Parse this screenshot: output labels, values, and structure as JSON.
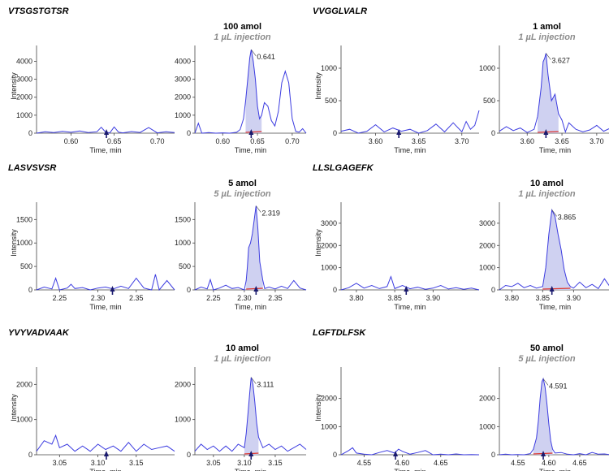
{
  "chart_data": [
    {
      "peptide": "VTSGSTGTSR",
      "amount": "100 amol",
      "injection": "1 µL injection",
      "xlabel": "Time, min",
      "ylabel": "Intensity",
      "xticks": [
        "0.60",
        "0.65",
        "0.70"
      ],
      "yticks": [
        "0",
        "1000",
        "2000",
        "3000",
        "4000"
      ],
      "peak_label": "0.641",
      "blank": {
        "type": "line",
        "xlim": [
          0.56,
          0.72
        ],
        "ylim": [
          0,
          4700
        ],
        "x": [
          0.56,
          0.57,
          0.58,
          0.59,
          0.6,
          0.61,
          0.62,
          0.63,
          0.635,
          0.64,
          0.645,
          0.65,
          0.655,
          0.66,
          0.67,
          0.68,
          0.69,
          0.7,
          0.71,
          0.72
        ],
        "y": [
          0,
          80,
          30,
          100,
          50,
          120,
          30,
          80,
          330,
          60,
          20,
          350,
          60,
          20,
          90,
          40,
          310,
          20,
          80,
          30
        ]
      },
      "sample": {
        "type": "line",
        "xlim": [
          0.56,
          0.72
        ],
        "ylim": [
          0,
          4700
        ],
        "x": [
          0.56,
          0.565,
          0.57,
          0.58,
          0.59,
          0.6,
          0.61,
          0.62,
          0.625,
          0.63,
          0.633,
          0.636,
          0.639,
          0.641,
          0.644,
          0.647,
          0.65,
          0.653,
          0.656,
          0.66,
          0.665,
          0.67,
          0.675,
          0.68,
          0.685,
          0.69,
          0.695,
          0.7,
          0.705,
          0.71,
          0.715,
          0.72
        ],
        "y": [
          0,
          550,
          0,
          30,
          0,
          20,
          0,
          50,
          200,
          800,
          1800,
          3000,
          4200,
          4650,
          4000,
          3000,
          1500,
          800,
          1000,
          1700,
          1500,
          700,
          400,
          1200,
          2800,
          3450,
          2800,
          800,
          100,
          60,
          250,
          0
        ],
        "shaded_peak": [
          0.632,
          0.656
        ],
        "marker_x": 0.641
      }
    },
    {
      "peptide": "VVGGLVALR",
      "amount": "1 amol",
      "injection": "1 µL injection",
      "xlabel": "Time, min",
      "ylabel": "Intensity",
      "xticks": [
        "3.60",
        "3.65",
        "3.70"
      ],
      "yticks": [
        "0",
        "500",
        "1000"
      ],
      "peak_label": "3.627",
      "blank": {
        "type": "line",
        "xlim": [
          3.56,
          3.72
        ],
        "ylim": [
          0,
          1300
        ],
        "x": [
          3.56,
          3.57,
          3.58,
          3.59,
          3.6,
          3.61,
          3.62,
          3.63,
          3.64,
          3.65,
          3.66,
          3.67,
          3.68,
          3.69,
          3.7,
          3.705,
          3.71,
          3.715,
          3.72
        ],
        "y": [
          30,
          60,
          0,
          30,
          130,
          20,
          80,
          30,
          60,
          0,
          40,
          140,
          20,
          160,
          20,
          180,
          60,
          120,
          350
        ]
      },
      "sample": {
        "type": "line",
        "xlim": [
          3.56,
          3.72
        ],
        "ylim": [
          0,
          1300
        ],
        "x": [
          3.56,
          3.57,
          3.58,
          3.59,
          3.6,
          3.61,
          3.615,
          3.62,
          3.623,
          3.625,
          3.627,
          3.63,
          3.635,
          3.64,
          3.645,
          3.65,
          3.655,
          3.66,
          3.67,
          3.68,
          3.69,
          3.7,
          3.71,
          3.72
        ],
        "y": [
          30,
          100,
          40,
          80,
          10,
          60,
          260,
          700,
          1100,
          1150,
          1230,
          900,
          500,
          600,
          300,
          200,
          20,
          160,
          60,
          20,
          50,
          120,
          30,
          80
        ],
        "shaded_peak": [
          3.615,
          3.645
        ],
        "marker_x": 3.627
      }
    },
    {
      "peptide": "LASVSVSR",
      "amount": "5 amol",
      "injection": "5 µL injection",
      "xlabel": "Time, min",
      "ylabel": "Intensity",
      "xticks": [
        "2.25",
        "2.30",
        "2.35"
      ],
      "yticks": [
        "0",
        "500",
        "1000",
        "1500"
      ],
      "peak_label": "2.319",
      "blank": {
        "type": "line",
        "xlim": [
          2.22,
          2.4
        ],
        "ylim": [
          0,
          1800
        ],
        "x": [
          2.22,
          2.23,
          2.24,
          2.245,
          2.25,
          2.26,
          2.265,
          2.27,
          2.28,
          2.29,
          2.3,
          2.31,
          2.32,
          2.33,
          2.34,
          2.35,
          2.36,
          2.37,
          2.375,
          2.38,
          2.39,
          2.4
        ],
        "y": [
          0,
          60,
          20,
          250,
          0,
          40,
          120,
          30,
          50,
          0,
          40,
          60,
          20,
          80,
          30,
          250,
          40,
          0,
          330,
          0,
          200,
          0
        ]
      },
      "sample": {
        "type": "line",
        "xlim": [
          2.22,
          2.4
        ],
        "ylim": [
          0,
          1800
        ],
        "x": [
          2.22,
          2.23,
          2.24,
          2.245,
          2.25,
          2.26,
          2.27,
          2.28,
          2.29,
          2.3,
          2.303,
          2.305,
          2.307,
          2.31,
          2.313,
          2.316,
          2.319,
          2.322,
          2.325,
          2.33,
          2.333,
          2.34,
          2.35,
          2.36,
          2.37,
          2.38,
          2.39,
          2.4
        ],
        "y": [
          0,
          60,
          20,
          220,
          0,
          40,
          100,
          30,
          50,
          0,
          200,
          500,
          900,
          1000,
          1200,
          1500,
          1790,
          1300,
          600,
          200,
          30,
          60,
          20,
          80,
          30,
          200,
          40,
          0
        ],
        "shaded_peak": [
          2.302,
          2.331
        ],
        "marker_x": 2.319
      }
    },
    {
      "peptide": "LLSLGAGEFK",
      "amount": "10 amol",
      "injection": "1 µL injection",
      "xlabel": "Time, min",
      "ylabel": "Intensity",
      "xticks": [
        "3.80",
        "3.85",
        "3.90"
      ],
      "yticks": [
        "0",
        "1000",
        "2000",
        "3000"
      ],
      "peak_label": "3.865",
      "blank": {
        "type": "line",
        "xlim": [
          3.78,
          3.96
        ],
        "ylim": [
          0,
          3800
        ],
        "x": [
          3.78,
          3.79,
          3.8,
          3.81,
          3.82,
          3.83,
          3.84,
          3.845,
          3.85,
          3.86,
          3.87,
          3.88,
          3.89,
          3.9,
          3.91,
          3.92,
          3.93,
          3.94,
          3.95,
          3.96
        ],
        "y": [
          0,
          100,
          300,
          80,
          200,
          60,
          150,
          600,
          60,
          200,
          50,
          120,
          30,
          80,
          200,
          40,
          100,
          30,
          80,
          0
        ]
      },
      "sample": {
        "type": "line",
        "xlim": [
          3.78,
          3.96
        ],
        "ylim": [
          0,
          3800
        ],
        "x": [
          3.78,
          3.79,
          3.8,
          3.81,
          3.82,
          3.83,
          3.84,
          3.85,
          3.855,
          3.86,
          3.865,
          3.87,
          3.875,
          3.88,
          3.885,
          3.89,
          3.895,
          3.9,
          3.91,
          3.92,
          3.93,
          3.94,
          3.95,
          3.96
        ],
        "y": [
          0,
          200,
          150,
          300,
          100,
          200,
          80,
          150,
          1000,
          2500,
          3600,
          3300,
          2500,
          1800,
          900,
          350,
          150,
          80,
          350,
          100,
          250,
          60,
          500,
          100
        ],
        "shaded_peak": [
          3.85,
          3.895
        ],
        "marker_x": 3.865
      }
    },
    {
      "peptide": "YVYVADVAAK",
      "amount": "10 amol",
      "injection": "1 µL injection",
      "xlabel": "Time, min",
      "ylabel": "Intensity",
      "xticks": [
        "3.05",
        "3.10",
        "3.15"
      ],
      "yticks": [
        "0",
        "1000",
        "2000"
      ],
      "peak_label": "3.111",
      "blank": {
        "type": "line",
        "xlim": [
          3.02,
          3.2
        ],
        "ylim": [
          0,
          2400
        ],
        "x": [
          3.02,
          3.03,
          3.04,
          3.045,
          3.05,
          3.06,
          3.07,
          3.08,
          3.09,
          3.1,
          3.11,
          3.12,
          3.13,
          3.14,
          3.15,
          3.16,
          3.17,
          3.18,
          3.19,
          3.2
        ],
        "y": [
          100,
          400,
          300,
          550,
          200,
          300,
          100,
          250,
          100,
          300,
          150,
          250,
          100,
          350,
          100,
          300,
          150,
          200,
          250,
          100
        ]
      },
      "sample": {
        "type": "line",
        "xlim": [
          3.02,
          3.2
        ],
        "ylim": [
          0,
          2400
        ],
        "x": [
          3.02,
          3.03,
          3.04,
          3.05,
          3.06,
          3.07,
          3.08,
          3.09,
          3.1,
          3.103,
          3.106,
          3.109,
          3.111,
          3.114,
          3.117,
          3.12,
          3.123,
          3.13,
          3.14,
          3.15,
          3.16,
          3.17,
          3.18,
          3.19,
          3.2
        ],
        "y": [
          100,
          300,
          150,
          250,
          100,
          250,
          100,
          300,
          200,
          600,
          1200,
          1800,
          2200,
          2000,
          1500,
          900,
          500,
          200,
          300,
          150,
          250,
          100,
          200,
          300,
          150
        ],
        "shaded_peak": [
          3.1,
          3.125
        ],
        "marker_x": 3.111
      }
    },
    {
      "peptide": "LGFTDLFSK",
      "amount": "50 amol",
      "injection": "5 µL injection",
      "xlabel": "Time, min",
      "ylabel": "Intensity",
      "xticks": [
        "4.55",
        "4.60",
        "4.65"
      ],
      "yticks": [
        "0",
        "1000",
        "2000"
      ],
      "peak_label": "4.591",
      "blank": {
        "type": "line",
        "xlim": [
          4.52,
          4.7
        ],
        "ylim": [
          0,
          3000
        ],
        "x": [
          4.52,
          4.53,
          4.535,
          4.54,
          4.55,
          4.56,
          4.57,
          4.58,
          4.59,
          4.595,
          4.6,
          4.61,
          4.62,
          4.63,
          4.64,
          4.65,
          4.66,
          4.67,
          4.68,
          4.69,
          4.7
        ],
        "y": [
          0,
          150,
          250,
          60,
          20,
          0,
          80,
          150,
          60,
          200,
          120,
          20,
          80,
          150,
          0,
          20,
          0,
          30,
          0,
          10,
          0
        ]
      },
      "sample": {
        "type": "line",
        "xlim": [
          4.52,
          4.7
        ],
        "ylim": [
          0,
          3000
        ],
        "x": [
          4.52,
          4.53,
          4.54,
          4.55,
          4.56,
          4.57,
          4.575,
          4.58,
          4.583,
          4.586,
          4.589,
          4.591,
          4.594,
          4.597,
          4.6,
          4.603,
          4.606,
          4.61,
          4.62,
          4.63,
          4.64,
          4.65,
          4.66,
          4.67,
          4.68,
          4.69,
          4.7
        ],
        "y": [
          0,
          20,
          0,
          10,
          0,
          40,
          200,
          600,
          1200,
          2000,
          2600,
          2700,
          2400,
          1800,
          1100,
          500,
          200,
          60,
          80,
          20,
          0,
          40,
          0,
          80,
          20,
          30,
          0
        ],
        "shaded_peak": [
          4.573,
          4.607
        ],
        "marker_x": 4.591
      }
    }
  ]
}
